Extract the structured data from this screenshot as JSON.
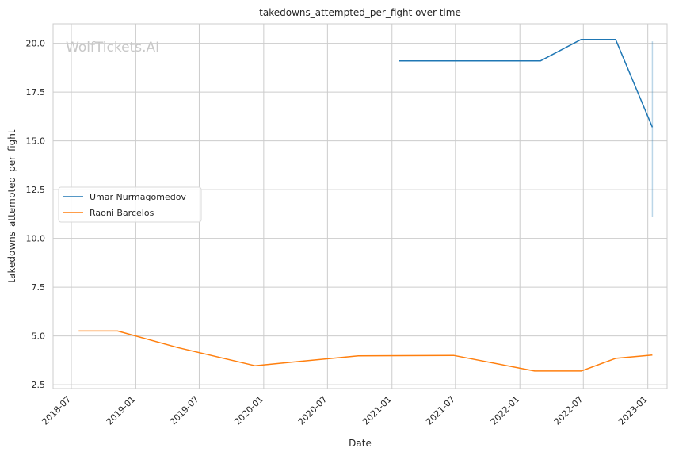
{
  "chart_data": {
    "type": "line",
    "title": "takedowns_attempted_per_fight over time",
    "xlabel": "Date",
    "ylabel": "takedowns_attempted_per_fight",
    "watermark": "WolfTickets.AI",
    "x_ticks": [
      "2018-07",
      "2019-01",
      "2019-07",
      "2020-01",
      "2020-07",
      "2021-01",
      "2021-07",
      "2022-01",
      "2022-07",
      "2023-01"
    ],
    "y_ticks": [
      "2.5",
      "5.0",
      "7.5",
      "10.0",
      "12.5",
      "15.0",
      "17.5",
      "20.0"
    ],
    "xlim": [
      "2018-05-10",
      "2023-02-25"
    ],
    "ylim": [
      2.3,
      21.0
    ],
    "grid": true,
    "legend_position": "center-left",
    "series": [
      {
        "name": "Umar Nurmagomedov",
        "color": "#1f77b4",
        "points": [
          [
            "2021-01-20",
            19.1
          ],
          [
            "2022-03-01",
            19.1
          ],
          [
            "2022-06-25",
            20.2
          ],
          [
            "2022-10-01",
            20.2
          ],
          [
            "2023-01-14",
            15.7
          ]
        ]
      },
      {
        "name": "Raoni Barcelos",
        "color": "#ff7f0e",
        "points": [
          [
            "2018-07-22",
            5.25
          ],
          [
            "2018-11-10",
            5.25
          ],
          [
            "2019-05-01",
            4.4
          ],
          [
            "2019-12-07",
            3.47
          ],
          [
            "2020-09-27",
            3.98
          ],
          [
            "2021-06-26",
            4.0
          ],
          [
            "2022-02-12",
            3.2
          ],
          [
            "2022-06-25",
            3.2
          ],
          [
            "2022-10-01",
            3.85
          ],
          [
            "2023-01-14",
            4.02
          ]
        ]
      }
    ],
    "confidence_band": {
      "color": "#1f77b4",
      "date": "2023-01-14",
      "low": 11.1,
      "high": 20.1
    }
  }
}
